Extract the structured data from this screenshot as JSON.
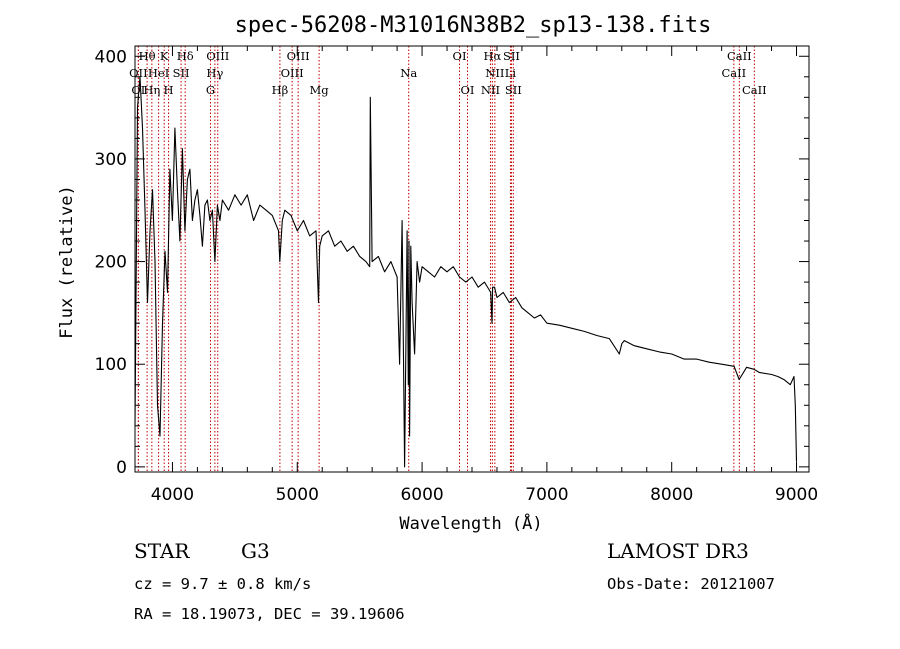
{
  "chart_data": {
    "type": "line",
    "title": "spec-56208-M31016N38B2_sp13-138.fits",
    "xlabel": "Wavelength (Å)",
    "ylabel": "Flux (relative)",
    "xlim": [
      3700,
      9100
    ],
    "ylim": [
      -5,
      410
    ],
    "xticks": [
      4000,
      5000,
      6000,
      7000,
      8000,
      9000
    ],
    "yticks": [
      0,
      100,
      200,
      300,
      400
    ],
    "grid": false,
    "series": [
      {
        "name": "spectrum",
        "x": [
          3700,
          3720,
          3740,
          3760,
          3780,
          3800,
          3820,
          3840,
          3860,
          3880,
          3900,
          3920,
          3940,
          3960,
          3980,
          4000,
          4020,
          4040,
          4060,
          4080,
          4100,
          4120,
          4140,
          4160,
          4180,
          4200,
          4220,
          4240,
          4260,
          4280,
          4300,
          4320,
          4340,
          4360,
          4380,
          4400,
          4450,
          4500,
          4550,
          4600,
          4650,
          4700,
          4750,
          4800,
          4850,
          4860,
          4880,
          4900,
          4950,
          5000,
          5050,
          5100,
          5150,
          5170,
          5180,
          5200,
          5250,
          5300,
          5350,
          5400,
          5450,
          5500,
          5550,
          5580,
          5585,
          5600,
          5650,
          5700,
          5750,
          5800,
          5820,
          5840,
          5860,
          5880,
          5890,
          5895,
          5900,
          5910,
          5920,
          5940,
          5960,
          5980,
          6000,
          6050,
          6100,
          6150,
          6200,
          6250,
          6300,
          6350,
          6400,
          6450,
          6500,
          6550,
          6560,
          6565,
          6580,
          6600,
          6650,
          6700,
          6750,
          6800,
          6850,
          6900,
          6950,
          7000,
          7100,
          7200,
          7300,
          7400,
          7500,
          7580,
          7600,
          7620,
          7700,
          7800,
          7900,
          8000,
          8100,
          8200,
          8300,
          8400,
          8500,
          8540,
          8600,
          8660,
          8700,
          8800,
          8850,
          8900,
          8950,
          8980,
          8990,
          9000
        ],
        "values": [
          40,
          350,
          380,
          330,
          250,
          160,
          230,
          270,
          200,
          60,
          30,
          140,
          210,
          170,
          290,
          240,
          330,
          270,
          220,
          310,
          230,
          280,
          290,
          240,
          260,
          270,
          245,
          215,
          255,
          260,
          240,
          250,
          200,
          255,
          240,
          260,
          250,
          265,
          255,
          265,
          240,
          255,
          250,
          245,
          230,
          200,
          240,
          250,
          245,
          230,
          240,
          225,
          230,
          160,
          215,
          225,
          230,
          215,
          220,
          210,
          215,
          205,
          200,
          195,
          360,
          200,
          205,
          190,
          200,
          185,
          100,
          240,
          0,
          230,
          80,
          220,
          30,
          215,
          160,
          110,
          200,
          180,
          195,
          190,
          185,
          195,
          190,
          195,
          185,
          180,
          185,
          175,
          180,
          170,
          140,
          175,
          175,
          165,
          170,
          160,
          165,
          155,
          150,
          145,
          148,
          140,
          138,
          135,
          132,
          128,
          125,
          110,
          120,
          123,
          118,
          115,
          112,
          110,
          105,
          105,
          102,
          100,
          98,
          85,
          97,
          95,
          92,
          90,
          88,
          85,
          80,
          88,
          60,
          5
        ]
      }
    ],
    "spectral_lines": [
      {
        "name": "Hθ",
        "x": 3797,
        "row": 1
      },
      {
        "name": "K",
        "x": 3934,
        "row": 1
      },
      {
        "name": "Hδ",
        "x": 4102,
        "row": 1
      },
      {
        "name": "OIII",
        "x": 4363,
        "row": 1
      },
      {
        "name": "OIII",
        "x": 5007,
        "row": 1
      },
      {
        "name": "OI",
        "x": 6300,
        "row": 1
      },
      {
        "name": "Hα",
        "x": 6563,
        "row": 1
      },
      {
        "name": "SII",
        "x": 6716,
        "row": 1
      },
      {
        "name": "CaII",
        "x": 8542,
        "row": 1
      },
      {
        "name": "OII",
        "x": 3727,
        "row": 2
      },
      {
        "name": "HeI",
        "x": 3889,
        "row": 2
      },
      {
        "name": "SII",
        "x": 4069,
        "row": 2
      },
      {
        "name": "Hγ",
        "x": 4340,
        "row": 2
      },
      {
        "name": "OIII",
        "x": 4959,
        "row": 2
      },
      {
        "name": "Na",
        "x": 5893,
        "row": 2
      },
      {
        "name": "NII",
        "x": 6583,
        "row": 2
      },
      {
        "name": "Li",
        "x": 6708,
        "row": 2
      },
      {
        "name": "CaII",
        "x": 8498,
        "row": 2
      },
      {
        "name": "OI",
        "x": 3727,
        "row": 3
      },
      {
        "name": "Hη",
        "x": 3835,
        "row": 3
      },
      {
        "name": "H",
        "x": 3969,
        "row": 3
      },
      {
        "name": "G",
        "x": 4305,
        "row": 3
      },
      {
        "name": "Hβ",
        "x": 4861,
        "row": 3
      },
      {
        "name": "Mg",
        "x": 5175,
        "row": 3
      },
      {
        "name": "OI",
        "x": 6364,
        "row": 3
      },
      {
        "name": "NII",
        "x": 6548,
        "row": 3
      },
      {
        "name": "SII",
        "x": 6731,
        "row": 3
      },
      {
        "name": "CaII",
        "x": 8662,
        "row": 3
      }
    ],
    "line_color": "#c00000"
  },
  "info": {
    "object_class": "STAR",
    "subclass": "G3",
    "survey": "LAMOST DR3",
    "cz": "cz = 9.7 ± 0.8 km/s",
    "obs_date": "Obs-Date: 20121007",
    "coords": "RA =  18.19073, DEC =  39.19606"
  }
}
